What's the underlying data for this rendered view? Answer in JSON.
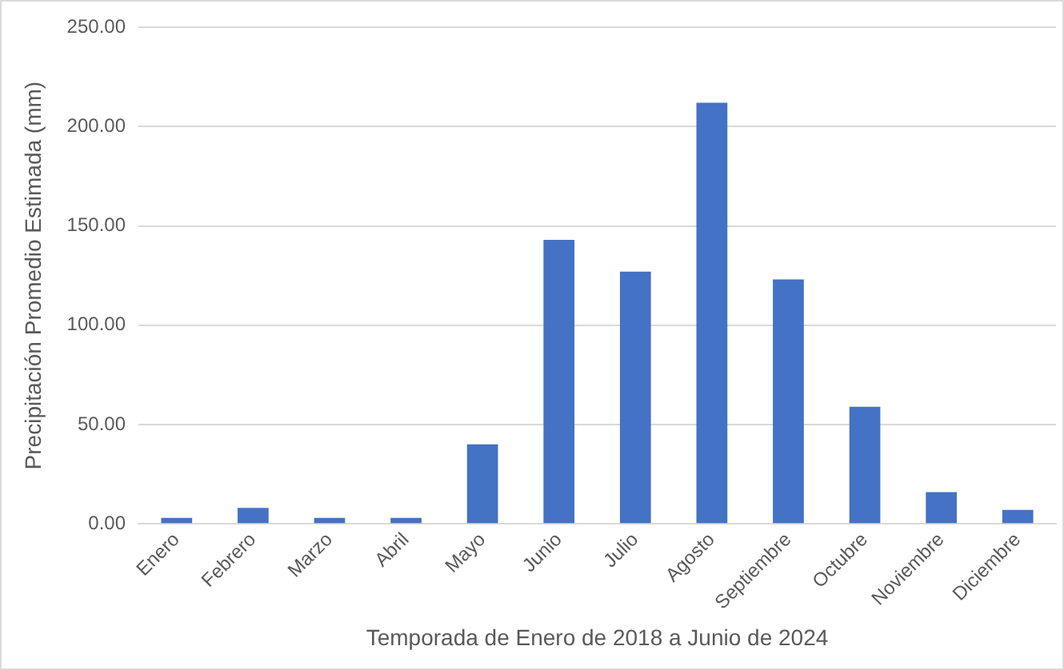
{
  "chart_data": {
    "type": "bar",
    "xlabel": "Temporada de Enero de 2018 a Junio de 2024",
    "ylabel": "Precipitación Promedio Estimada (mm)",
    "categories": [
      "Enero",
      "Febrero",
      "Marzo",
      "Abril",
      "Mayo",
      "Junio",
      "Julio",
      "Agosto",
      "Septiembre",
      "Octubre",
      "Noviembre",
      "Diciembre"
    ],
    "values": [
      3,
      8,
      3,
      3,
      40,
      143,
      127,
      212,
      123,
      59,
      16,
      7
    ],
    "color": "#4472c4",
    "ylim": [
      0,
      250
    ],
    "yticks": [
      {
        "value": 0,
        "label": "0.00"
      },
      {
        "value": 50,
        "label": "50.00"
      },
      {
        "value": 100,
        "label": "100.00"
      },
      {
        "value": 150,
        "label": "150.00"
      },
      {
        "value": 200,
        "label": "200.00"
      },
      {
        "value": 250,
        "label": "250.00"
      }
    ],
    "grid": "y"
  }
}
